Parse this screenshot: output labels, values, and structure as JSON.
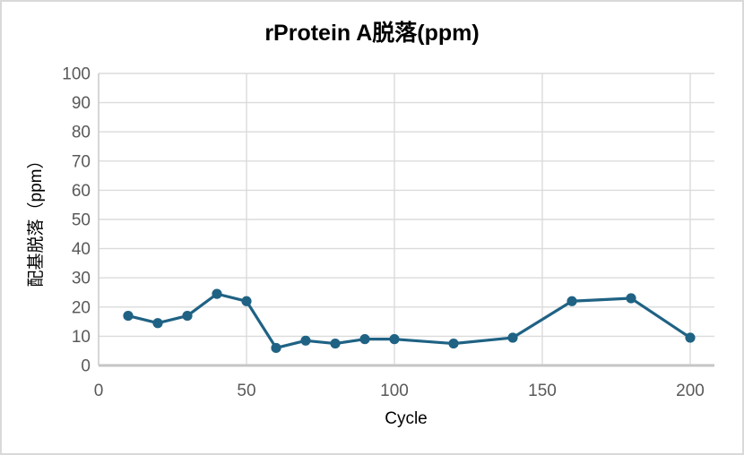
{
  "chart_data": {
    "type": "line",
    "title": "rProtein A脱落(ppm)",
    "xlabel": "Cycle",
    "ylabel": "配基脱落（ppm）",
    "x": [
      10,
      20,
      30,
      40,
      50,
      60,
      70,
      80,
      90,
      100,
      120,
      140,
      160,
      180,
      200
    ],
    "y": [
      17,
      14.5,
      17,
      24.5,
      22,
      6,
      8.5,
      7.5,
      9,
      9,
      7.5,
      9.5,
      22,
      23,
      9.5
    ],
    "xlim": [
      0,
      200
    ],
    "ylim": [
      0,
      100
    ],
    "x_ticks": [
      0,
      50,
      100,
      150,
      200
    ],
    "y_ticks": [
      0,
      10,
      20,
      30,
      40,
      50,
      60,
      70,
      80,
      90,
      100
    ],
    "grid": true,
    "legend": "none",
    "marker": "circle"
  },
  "colors": {
    "line": "#1f6284",
    "marker": "#1f6284",
    "grid": "#dbdbdb",
    "axis": "#c6c6c6",
    "tick_label": "#595959",
    "axis_title": "#000000",
    "title": "#000000",
    "border": "#d9d9d9",
    "background": "#ffffff"
  }
}
